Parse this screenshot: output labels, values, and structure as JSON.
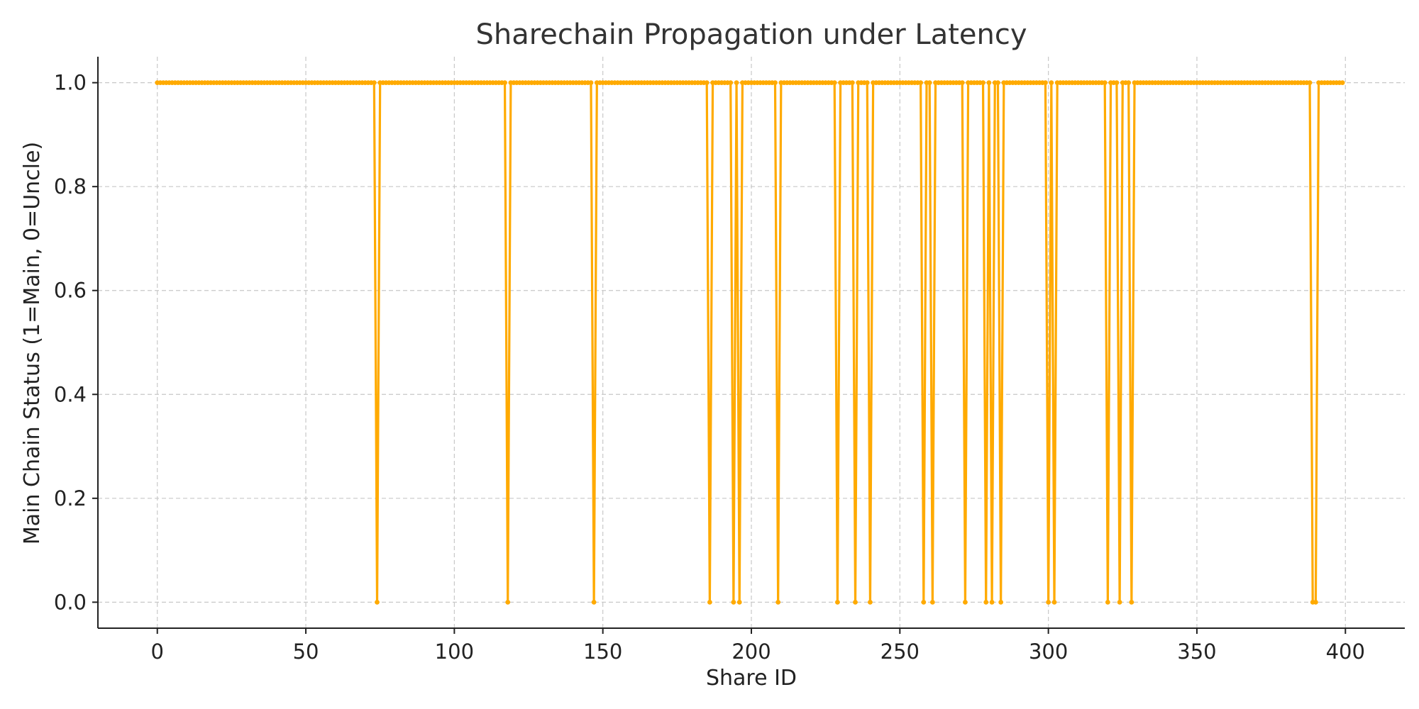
{
  "chart_data": {
    "type": "line",
    "title": "Sharechain Propagation under Latency",
    "xlabel": "Share ID",
    "ylabel": "Main Chain Status (1=Main, 0=Uncle)",
    "xlim": [
      -20,
      420
    ],
    "ylim": [
      -0.05,
      1.05
    ],
    "x_ticks": [
      0,
      50,
      100,
      150,
      200,
      250,
      300,
      350,
      400
    ],
    "y_ticks": [
      0.0,
      0.2,
      0.4,
      0.6,
      0.8,
      1.0
    ],
    "x_tick_labels": [
      "0",
      "50",
      "100",
      "150",
      "200",
      "250",
      "300",
      "350",
      "400"
    ],
    "y_tick_labels": [
      "0.0",
      "0.2",
      "0.4",
      "0.6",
      "0.8",
      "1.0"
    ],
    "grid": true,
    "series_color": "#FFAA00",
    "x_start": 0,
    "x_end": 399,
    "default_value": 1,
    "uncle_share_ids": [
      74,
      118,
      147,
      186,
      194,
      196,
      209,
      229,
      235,
      240,
      258,
      261,
      272,
      279,
      281,
      284,
      300,
      302,
      320,
      324,
      328,
      389,
      390
    ]
  }
}
